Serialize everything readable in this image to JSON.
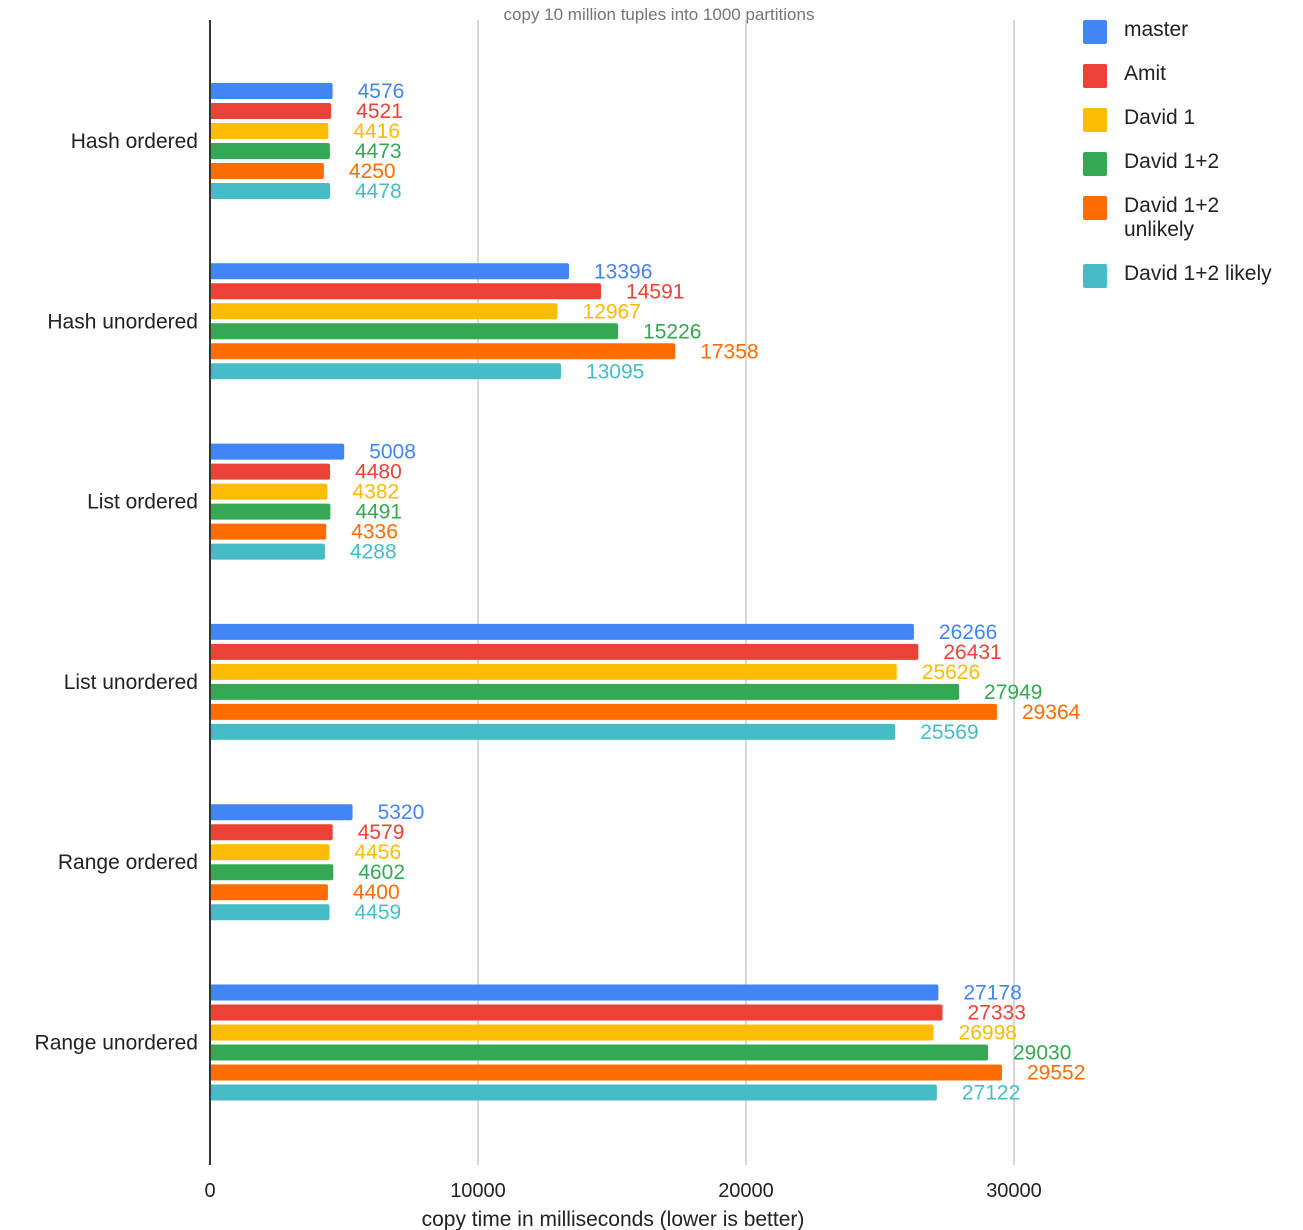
{
  "chart_data": {
    "type": "bar",
    "orientation": "horizontal",
    "title": "copy 10 million tuples into 1000 partitions",
    "xlabel": "copy time in milliseconds (lower is better)",
    "ylabel": "",
    "xlim": [
      0,
      34000
    ],
    "xticks": [
      0,
      10000,
      20000,
      30000
    ],
    "xtick_labels": [
      "0",
      "10000",
      "20000",
      "30000"
    ],
    "grid": true,
    "legend_position": "right",
    "categories": [
      "Hash ordered",
      "Hash unordered",
      "List ordered",
      "List unordered",
      "Range ordered",
      "Range unordered"
    ],
    "series": [
      {
        "name": "master",
        "color": "#4285f4",
        "values": [
          4576,
          13396,
          5008,
          26266,
          5320,
          27178
        ]
      },
      {
        "name": "Amit",
        "color": "#ea4335",
        "values": [
          4521,
          14591,
          4480,
          26431,
          4579,
          27333
        ]
      },
      {
        "name": "David 1",
        "color": "#fbbc04",
        "values": [
          4416,
          12967,
          4382,
          25626,
          4456,
          26998
        ]
      },
      {
        "name": "David 1+2",
        "color": "#34a853",
        "values": [
          4473,
          15226,
          4491,
          27949,
          4602,
          29030
        ]
      },
      {
        "name": "David 1+2\nunlikely",
        "color": "#ff6d01",
        "values": [
          4250,
          17358,
          4336,
          29364,
          4400,
          29552
        ]
      },
      {
        "name": "David 1+2 likely",
        "color": "#46bdc6",
        "values": [
          4478,
          13095,
          4288,
          25569,
          4459,
          27122
        ]
      }
    ]
  }
}
